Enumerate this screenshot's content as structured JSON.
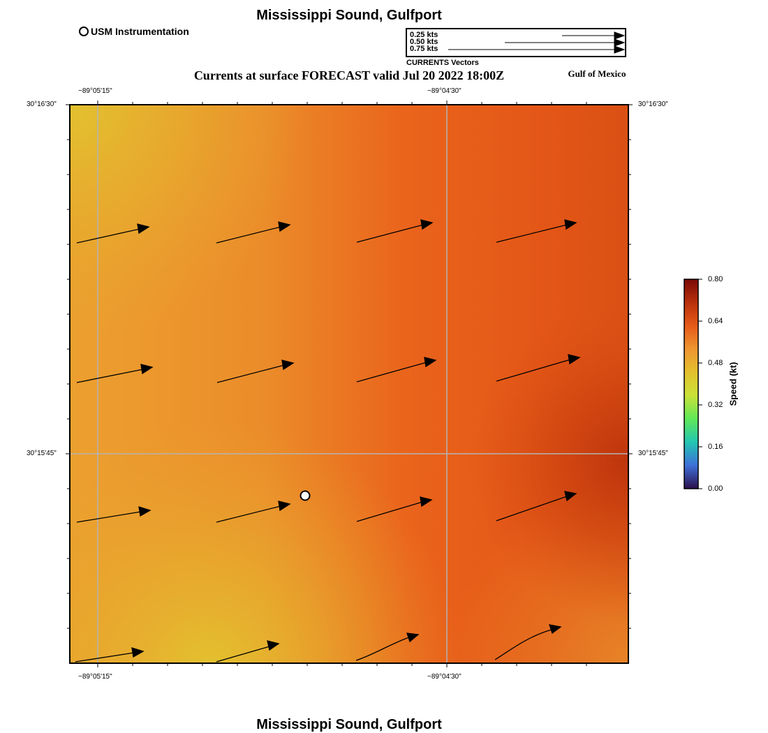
{
  "header": {
    "title": "Mississippi Sound, Gulfport",
    "forecast_title": "Currents at surface FORECAST valid Jul 20 2022 18:00Z",
    "region_label": "Gulf of Mexico"
  },
  "legend": {
    "usm_label": "USM Instrumentation",
    "vector_caption": "CURRENTS Vectors",
    "vector_scale": [
      {
        "label": "0.25 kts",
        "speed_kt": 0.25
      },
      {
        "label": "0.50 kts",
        "speed_kt": 0.5
      },
      {
        "label": "0.75 kts",
        "speed_kt": 0.75
      }
    ]
  },
  "map": {
    "lon_ticks_top": [
      "−89°05'15\"",
      "−89°04'30\""
    ],
    "lon_ticks_bottom": [
      "−89°05'15\"",
      "−89°04'30\""
    ],
    "lat_ticks_left": [
      "30°16'30\"",
      "30°15'45\""
    ],
    "lat_ticks_right": [
      "30°16'30\"",
      "30°15'45\""
    ],
    "station": {
      "name": "USM Instrumentation",
      "marker": "circle"
    }
  },
  "colorbar": {
    "label": "Speed (kt)",
    "ticks": [
      "0.80",
      "0.64",
      "0.48",
      "0.32",
      "0.16",
      "0.00"
    ],
    "min": 0.0,
    "max": 0.8,
    "colors": [
      "#2b0f4b",
      "#3f6fd8",
      "#22c6b2",
      "#5fe858",
      "#c9e238",
      "#e4c02e",
      "#ee9630",
      "#e65a18",
      "#b8300c",
      "#7a0a06"
    ]
  },
  "footer": {
    "title": "Mississippi Sound, Gulfport"
  },
  "colors": {
    "field_light": "#e3bd2f",
    "field_mid": "#ea8a2a",
    "field_strong": "#e8581a",
    "field_peak": "#c63d10",
    "grid": "#b4b4b4"
  }
}
